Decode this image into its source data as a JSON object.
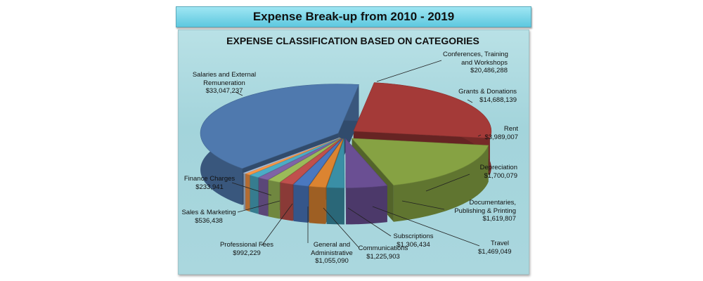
{
  "banner_title": "Expense Break-up from 2010 - 2019",
  "chart_data": {
    "type": "pie",
    "title": "EXPENSE CLASSIFICATION BASED ON CATEGORIES",
    "slices": [
      {
        "category": "Conferences, Training and Workshops",
        "label_lines": [
          "Conferences, Training",
          "and Workshops"
        ],
        "value": 20486288,
        "value_text": "$20,486,288",
        "color": "#a43a38"
      },
      {
        "category": "Grants & Donations",
        "label_lines": [
          "Grants & Donations"
        ],
        "value": 14688139,
        "value_text": "$14,688,139",
        "color": "#86a243"
      },
      {
        "category": "Rent",
        "label_lines": [
          "Rent"
        ],
        "value": 3989007,
        "value_text": "$3,989,007",
        "color": "#6a4f93"
      },
      {
        "category": "Depreciation",
        "label_lines": [
          "Depreciation"
        ],
        "value": 1700079,
        "value_text": "$1,700,079",
        "color": "#3a8fa6"
      },
      {
        "category": "Documentaries, Publishing & Printing",
        "label_lines": [
          "Documentaries,",
          "Publishing & Printing"
        ],
        "value": 1619807,
        "value_text": "$1,619,807",
        "color": "#dc8431"
      },
      {
        "category": "Travel",
        "label_lines": [
          "Travel"
        ],
        "value": 1469049,
        "value_text": "$1,469,049",
        "color": "#4a78c0"
      },
      {
        "category": "Subscriptions",
        "label_lines": [
          "Subscriptions"
        ],
        "value": 1306434,
        "value_text": "$1,306,434",
        "color": "#c0504d"
      },
      {
        "category": "Communications",
        "label_lines": [
          "Communications"
        ],
        "value": 1225903,
        "value_text": "$1,225,903",
        "color": "#9bbb59"
      },
      {
        "category": "General and Administrative",
        "label_lines": [
          "General and",
          "Administrative"
        ],
        "value": 1055090,
        "value_text": "$1,055,090",
        "color": "#7f63a6"
      },
      {
        "category": "Professional Fees",
        "label_lines": [
          "Professional Fees"
        ],
        "value": 992229,
        "value_text": "$992,229",
        "color": "#4bacc6"
      },
      {
        "category": "Sales & Marketing",
        "label_lines": [
          "Sales & Marketing"
        ],
        "value": 536438,
        "value_text": "$536,438",
        "color": "#f79646"
      },
      {
        "category": "Finance Charges",
        "label_lines": [
          "Finance Charges"
        ],
        "value": 233941,
        "value_text": "$233,941",
        "color": "#b3c6e0"
      },
      {
        "category": "Salaries and External Remuneration",
        "label_lines": [
          "Salaries and External",
          "Remuneration"
        ],
        "value": 33047237,
        "value_text": "$33,047,237",
        "color": "#4f79ae"
      }
    ],
    "legend": "none",
    "style": "3d-exploded"
  }
}
